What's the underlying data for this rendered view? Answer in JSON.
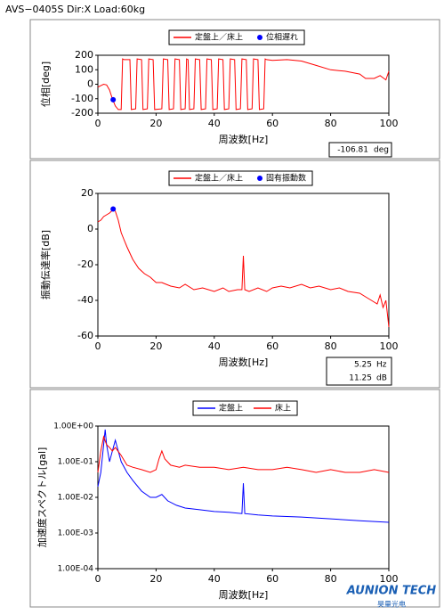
{
  "header": "AVS−0405S  Dir:X  Load:60kg",
  "logo": {
    "name": "AUNION TECH",
    "sub": "昊量光电"
  },
  "chart_data": [
    {
      "type": "line",
      "xlabel": "周波数[Hz]",
      "ylabel": "位相[deg]",
      "xlim": [
        0,
        100
      ],
      "xticks": [
        0,
        20,
        40,
        60,
        80,
        100
      ],
      "ylim": [
        -200,
        200
      ],
      "yticks": [
        -200,
        -100,
        0,
        100,
        200
      ],
      "log_y": false,
      "series": [
        {
          "name": "定盤上／床上",
          "color": "#ff0000",
          "marker": "line",
          "x": [
            0,
            1,
            2,
            3,
            4,
            5,
            6,
            7,
            8,
            8.5,
            9,
            11,
            11.5,
            13,
            13.5,
            15,
            15.5,
            17,
            17.5,
            19,
            19.5,
            22,
            22.5,
            24,
            24.5,
            26,
            26.5,
            28,
            28.5,
            30,
            30.5,
            31,
            31.5,
            33,
            33.5,
            35,
            35.5,
            37,
            37.5,
            39,
            39.5,
            41,
            41.5,
            43,
            43.5,
            45,
            45.5,
            47,
            47.5,
            49,
            49.5,
            51,
            51.5,
            53,
            53.5,
            55,
            55.5,
            57,
            57.5,
            58,
            60,
            65,
            70,
            75,
            80,
            85,
            90,
            92,
            95,
            97,
            99,
            100
          ],
          "values": [
            -20,
            -10,
            0,
            -5,
            -40,
            -100,
            -150,
            -175,
            -175,
            175,
            170,
            170,
            -175,
            -170,
            175,
            170,
            -175,
            -170,
            175,
            170,
            -175,
            -170,
            175,
            170,
            -175,
            -170,
            175,
            170,
            -175,
            -170,
            175,
            170,
            -175,
            -170,
            175,
            170,
            -175,
            -170,
            175,
            170,
            -175,
            -170,
            175,
            170,
            -175,
            -170,
            175,
            170,
            -175,
            -170,
            175,
            170,
            -175,
            -170,
            175,
            170,
            -175,
            -170,
            175,
            170,
            165,
            170,
            160,
            130,
            100,
            90,
            70,
            40,
            40,
            60,
            30,
            90
          ]
        },
        {
          "name": "位相遅れ",
          "color": "#0000ff",
          "marker": "dot",
          "x": [
            5.25
          ],
          "values": [
            -106.81
          ]
        }
      ],
      "readout_units": [
        "deg"
      ]
    },
    {
      "type": "line",
      "xlabel": "周波数[Hz]",
      "ylabel": "振動伝達率[dB]",
      "xlim": [
        0,
        100
      ],
      "xticks": [
        0,
        20,
        40,
        60,
        80,
        100
      ],
      "ylim": [
        -60,
        20
      ],
      "yticks": [
        -60,
        -40,
        -20,
        0,
        20
      ],
      "log_y": false,
      "series": [
        {
          "name": "定盤上／床上",
          "color": "#ff0000",
          "marker": "line",
          "x": [
            0,
            1,
            2,
            3,
            4,
            5,
            5.25,
            6,
            7,
            8,
            9,
            10,
            12,
            14,
            16,
            18,
            20,
            22,
            25,
            28,
            30,
            33,
            36,
            40,
            43,
            45,
            48,
            49.5,
            50,
            50.5,
            52,
            55,
            58,
            60,
            63,
            66,
            70,
            73,
            76,
            80,
            83,
            86,
            90,
            92,
            94,
            96,
            97,
            98,
            99,
            100
          ],
          "values": [
            4,
            5,
            7,
            8,
            9,
            10.5,
            11.2,
            10,
            5,
            -2,
            -6,
            -10,
            -17,
            -22,
            -25,
            -27,
            -30,
            -30,
            -32,
            -33,
            -31,
            -34,
            -33,
            -35,
            -33,
            -35,
            -34,
            -34,
            -15,
            -34,
            -35,
            -33,
            -35,
            -33,
            -32,
            -33,
            -31,
            -33,
            -32,
            -34,
            -33,
            -35,
            -36,
            -38,
            -40,
            -42,
            -37,
            -44,
            -40,
            -55
          ]
        },
        {
          "name": "固有振動数",
          "color": "#0000ff",
          "marker": "dot",
          "x": [
            5.25
          ],
          "values": [
            11.25
          ]
        }
      ],
      "readout_units": [
        "Hz",
        "dB"
      ]
    },
    {
      "type": "line",
      "xlabel": "周波数[Hz]",
      "ylabel": "加速度スペクトル[gal]",
      "xlim": [
        0,
        100
      ],
      "xticks": [
        0,
        20,
        40,
        60,
        80,
        100
      ],
      "ylim": [
        0.0001,
        1
      ],
      "log_y": true,
      "yticks": [
        {
          "value": 0.0001,
          "label": "1.00E-04"
        },
        {
          "value": 0.001,
          "label": "1.00E-03"
        },
        {
          "value": 0.01,
          "label": "1.00E-02"
        },
        {
          "value": 0.1,
          "label": "1.00E-01"
        },
        {
          "value": 1,
          "label": "1.00E+00"
        }
      ],
      "series": [
        {
          "name": "定盤上",
          "color": "#0000ff",
          "marker": "line",
          "x": [
            0,
            1,
            2,
            2.5,
            3,
            4,
            5,
            6,
            7,
            8,
            10,
            12,
            15,
            18,
            20,
            22,
            24,
            27,
            30,
            35,
            40,
            45,
            49.5,
            50,
            50.5,
            55,
            60,
            70,
            80,
            90,
            100
          ],
          "values": [
            0.02,
            0.05,
            0.3,
            0.8,
            0.3,
            0.1,
            0.2,
            0.4,
            0.2,
            0.1,
            0.05,
            0.03,
            0.015,
            0.01,
            0.01,
            0.012,
            0.008,
            0.006,
            0.005,
            0.0045,
            0.004,
            0.0038,
            0.0035,
            0.025,
            0.0035,
            0.0032,
            0.003,
            0.0028,
            0.0025,
            0.0022,
            0.002
          ]
        },
        {
          "name": "床上",
          "color": "#ff0000",
          "marker": "line",
          "x": [
            0,
            1,
            2,
            3,
            4,
            5,
            6,
            8,
            10,
            12,
            15,
            18,
            20,
            21,
            22,
            23,
            25,
            28,
            30,
            35,
            40,
            45,
            50,
            55,
            60,
            65,
            70,
            75,
            80,
            85,
            90,
            95,
            100
          ],
          "values": [
            0.05,
            0.2,
            0.5,
            0.3,
            0.25,
            0.2,
            0.25,
            0.15,
            0.08,
            0.07,
            0.06,
            0.05,
            0.06,
            0.12,
            0.2,
            0.12,
            0.08,
            0.07,
            0.08,
            0.07,
            0.07,
            0.06,
            0.07,
            0.06,
            0.06,
            0.07,
            0.06,
            0.05,
            0.06,
            0.05,
            0.05,
            0.06,
            0.05
          ]
        }
      ]
    }
  ]
}
